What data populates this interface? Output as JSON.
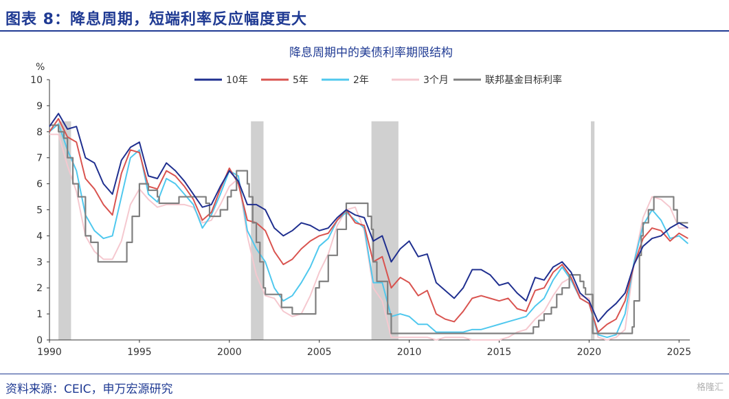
{
  "figure_title": "图表 8：降息周期，短端利率反应幅度更大",
  "source_note": "资料来源：CEIC，申万宏源研究",
  "watermark": "格隆汇",
  "chart_data": {
    "type": "line",
    "title": "降息周期中的美债利率期限结构",
    "ylabel": "%",
    "xlabel": "",
    "xlim": [
      1990,
      2025.6
    ],
    "ylim": [
      0,
      10
    ],
    "x_ticks": [
      1990,
      1995,
      2000,
      2005,
      2010,
      2015,
      2020,
      2025
    ],
    "y_ticks": [
      0,
      1,
      2,
      3,
      4,
      5,
      6,
      7,
      8,
      9,
      10
    ],
    "grid": false,
    "legend_position": "top",
    "recession_shading": [
      [
        1990.5,
        1991.2
      ],
      [
        2001.2,
        2001.9
      ],
      [
        2007.9,
        2009.4
      ],
      [
        2020.1,
        2020.3
      ]
    ],
    "series": [
      {
        "name": "10年",
        "color": "#1f2f8f",
        "x": [
          1990,
          1990.5,
          1991,
          1991.5,
          1992,
          1992.5,
          1993,
          1993.5,
          1994,
          1994.5,
          1995,
          1995.5,
          1996,
          1996.5,
          1997,
          1997.5,
          1998,
          1998.5,
          1999,
          1999.5,
          2000,
          2000.5,
          2001,
          2001.5,
          2002,
          2002.5,
          2003,
          2003.5,
          2004,
          2004.5,
          2005,
          2005.5,
          2006,
          2006.5,
          2007,
          2007.5,
          2008,
          2008.5,
          2009,
          2009.5,
          2010,
          2010.5,
          2011,
          2011.5,
          2012,
          2012.5,
          2013,
          2013.5,
          2014,
          2014.5,
          2015,
          2015.5,
          2016,
          2016.5,
          2017,
          2017.5,
          2018,
          2018.5,
          2019,
          2019.5,
          2020,
          2020.5,
          2021,
          2021.5,
          2022,
          2022.5,
          2023,
          2023.5,
          2024,
          2024.5,
          2025,
          2025.5
        ],
        "values": [
          8.2,
          8.7,
          8.1,
          8.2,
          7.0,
          6.8,
          6.0,
          5.6,
          6.9,
          7.4,
          7.6,
          6.3,
          6.2,
          6.8,
          6.5,
          6.1,
          5.6,
          5.1,
          5.2,
          5.9,
          6.5,
          6.1,
          5.2,
          5.2,
          5.0,
          4.3,
          4.0,
          4.2,
          4.5,
          4.4,
          4.2,
          4.3,
          4.7,
          5.0,
          4.8,
          4.7,
          3.8,
          4.0,
          3.0,
          3.5,
          3.8,
          3.2,
          3.3,
          2.2,
          1.9,
          1.6,
          2.0,
          2.7,
          2.7,
          2.5,
          2.1,
          2.2,
          1.8,
          1.5,
          2.4,
          2.3,
          2.8,
          3.0,
          2.6,
          1.8,
          1.5,
          0.7,
          1.1,
          1.4,
          1.8,
          2.9,
          3.6,
          3.9,
          4.0,
          4.3,
          4.5,
          4.3
        ]
      },
      {
        "name": "5年",
        "color": "#d9534f",
        "x": [
          1990,
          1990.5,
          1991,
          1991.5,
          1992,
          1992.5,
          1993,
          1993.5,
          1994,
          1994.5,
          1995,
          1995.5,
          1996,
          1996.5,
          1997,
          1997.5,
          1998,
          1998.5,
          1999,
          1999.5,
          2000,
          2000.5,
          2001,
          2001.5,
          2002,
          2002.5,
          2003,
          2003.5,
          2004,
          2004.5,
          2005,
          2005.5,
          2006,
          2006.5,
          2007,
          2007.5,
          2008,
          2008.5,
          2009,
          2009.5,
          2010,
          2010.5,
          2011,
          2011.5,
          2012,
          2012.5,
          2013,
          2013.5,
          2014,
          2014.5,
          2015,
          2015.5,
          2016,
          2016.5,
          2017,
          2017.5,
          2018,
          2018.5,
          2019,
          2019.5,
          2020,
          2020.5,
          2021,
          2021.5,
          2022,
          2022.5,
          2023,
          2023.5,
          2024,
          2024.5,
          2025,
          2025.5
        ],
        "values": [
          8.0,
          8.5,
          7.8,
          7.6,
          6.2,
          5.8,
          5.2,
          4.8,
          6.4,
          7.3,
          7.2,
          5.9,
          5.8,
          6.5,
          6.3,
          5.9,
          5.4,
          4.6,
          4.9,
          5.8,
          6.6,
          6.0,
          4.6,
          4.5,
          4.2,
          3.4,
          2.9,
          3.1,
          3.5,
          3.8,
          4.0,
          4.1,
          4.6,
          5.0,
          4.5,
          4.4,
          3.0,
          3.2,
          2.0,
          2.4,
          2.2,
          1.7,
          1.9,
          1.0,
          0.8,
          0.7,
          1.1,
          1.6,
          1.7,
          1.6,
          1.5,
          1.6,
          1.2,
          1.1,
          1.9,
          2.0,
          2.6,
          2.9,
          2.4,
          1.6,
          1.4,
          0.3,
          0.6,
          0.8,
          1.5,
          2.9,
          3.9,
          4.3,
          4.2,
          3.8,
          4.1,
          3.9
        ]
      },
      {
        "name": "2年",
        "color": "#4fc8ee",
        "x": [
          1990,
          1990.5,
          1991,
          1991.5,
          1992,
          1992.5,
          1993,
          1993.5,
          1994,
          1994.5,
          1995,
          1995.5,
          1996,
          1996.5,
          1997,
          1997.5,
          1998,
          1998.5,
          1999,
          1999.5,
          2000,
          2000.5,
          2001,
          2001.5,
          2002,
          2002.5,
          2003,
          2003.5,
          2004,
          2004.5,
          2005,
          2005.5,
          2006,
          2006.5,
          2007,
          2007.5,
          2008,
          2008.5,
          2009,
          2009.5,
          2010,
          2010.5,
          2011,
          2011.5,
          2012,
          2012.5,
          2013,
          2013.5,
          2014,
          2014.5,
          2015,
          2015.5,
          2016,
          2016.5,
          2017,
          2017.5,
          2018,
          2018.5,
          2019,
          2019.5,
          2020,
          2020.5,
          2021,
          2021.5,
          2022,
          2022.5,
          2023,
          2023.5,
          2024,
          2024.5,
          2025,
          2025.5
        ],
        "values": [
          8.0,
          8.3,
          7.3,
          6.5,
          4.8,
          4.2,
          3.9,
          4.0,
          5.5,
          7.0,
          7.3,
          5.6,
          5.3,
          6.2,
          6.0,
          5.6,
          5.2,
          4.3,
          4.8,
          5.6,
          6.5,
          6.3,
          4.2,
          3.5,
          3.0,
          2.0,
          1.5,
          1.7,
          2.2,
          2.8,
          3.6,
          3.9,
          4.6,
          4.9,
          4.6,
          4.3,
          2.2,
          2.2,
          0.9,
          1.0,
          0.9,
          0.6,
          0.6,
          0.3,
          0.3,
          0.3,
          0.3,
          0.4,
          0.4,
          0.5,
          0.6,
          0.7,
          0.8,
          0.9,
          1.3,
          1.6,
          2.3,
          2.8,
          2.3,
          1.6,
          1.4,
          0.2,
          0.1,
          0.2,
          1.0,
          3.0,
          4.4,
          5.0,
          4.6,
          3.9,
          4.0,
          3.7
        ]
      },
      {
        "name": "3个月",
        "color": "#f5c8cf",
        "x": [
          1990,
          1990.5,
          1991,
          1991.5,
          1992,
          1992.5,
          1993,
          1993.5,
          1994,
          1994.5,
          1995,
          1995.5,
          1996,
          1996.5,
          1997,
          1997.5,
          1998,
          1998.5,
          1999,
          1999.5,
          2000,
          2000.5,
          2001,
          2001.5,
          2002,
          2002.5,
          2003,
          2003.5,
          2004,
          2004.5,
          2005,
          2005.5,
          2006,
          2006.5,
          2007,
          2007.5,
          2008,
          2008.5,
          2009,
          2009.5,
          2010,
          2010.5,
          2011,
          2011.5,
          2012,
          2012.5,
          2013,
          2013.5,
          2014,
          2014.5,
          2015,
          2015.5,
          2016,
          2016.5,
          2017,
          2017.5,
          2018,
          2018.5,
          2019,
          2019.5,
          2020,
          2020.5,
          2021,
          2021.5,
          2022,
          2022.5,
          2023,
          2023.5,
          2024,
          2024.5,
          2025,
          2025.5
        ],
        "values": [
          7.9,
          7.9,
          6.7,
          5.7,
          4.0,
          3.4,
          3.1,
          3.1,
          3.8,
          5.2,
          5.8,
          5.4,
          5.1,
          5.2,
          5.2,
          5.2,
          5.1,
          4.5,
          4.6,
          5.2,
          5.9,
          6.2,
          4.0,
          2.5,
          1.7,
          1.6,
          1.1,
          0.9,
          1.0,
          1.7,
          2.6,
          3.3,
          4.4,
          5.0,
          5.1,
          4.2,
          2.0,
          1.5,
          0.1,
          0.1,
          0.1,
          0.1,
          0.1,
          0.0,
          0.1,
          0.1,
          0.1,
          0.0,
          0.0,
          0.0,
          0.0,
          0.1,
          0.3,
          0.4,
          0.8,
          1.1,
          1.7,
          2.2,
          2.4,
          1.7,
          1.6,
          0.1,
          0.0,
          0.1,
          0.4,
          3.0,
          4.7,
          5.5,
          5.4,
          5.1,
          4.3,
          4.3
        ]
      },
      {
        "name": "联邦基金目标利率",
        "color": "#7f7f7f",
        "x": [
          1990,
          1990.5,
          1990.8,
          1991,
          1991.3,
          1991.6,
          1992,
          1992.3,
          1992.7,
          1993,
          1994,
          1994.3,
          1994.6,
          1995,
          1995.5,
          1996,
          1996.1,
          1997,
          1997.2,
          1998,
          1998.7,
          1998.9,
          1999,
          1999.5,
          1999.9,
          2000.1,
          2000.4,
          2001,
          2001.1,
          2001.3,
          2001.5,
          2001.7,
          2001.9,
          2002,
          2002.9,
          2003.5,
          2004.5,
          2004.8,
          2005,
          2005.5,
          2006,
          2006.5,
          2007,
          2007.7,
          2007.9,
          2008,
          2008.2,
          2008.8,
          2009,
          2015.9,
          2016.9,
          2017.2,
          2017.5,
          2017.9,
          2018.2,
          2018.5,
          2018.9,
          2019.5,
          2019.7,
          2019.8,
          2020.2,
          2022.2,
          2022.4,
          2022.5,
          2022.8,
          2022.9,
          2023,
          2023.3,
          2023.6,
          2024,
          2024.7,
          2024.9,
          2025.5
        ],
        "values": [
          8.25,
          8.0,
          7.75,
          7.0,
          6.0,
          5.5,
          4.0,
          3.75,
          3.0,
          3.0,
          3.0,
          3.75,
          4.75,
          6.0,
          5.75,
          5.5,
          5.25,
          5.25,
          5.5,
          5.5,
          5.25,
          4.75,
          4.75,
          5.0,
          5.5,
          5.75,
          6.5,
          6.0,
          5.5,
          4.5,
          3.75,
          3.0,
          2.0,
          1.75,
          1.25,
          1.0,
          1.0,
          2.0,
          2.25,
          3.25,
          4.25,
          5.25,
          5.25,
          4.75,
          4.25,
          3.0,
          2.25,
          1.0,
          0.25,
          0.25,
          0.5,
          0.75,
          1.0,
          1.25,
          1.75,
          2.0,
          2.5,
          2.25,
          2.0,
          1.75,
          0.25,
          0.25,
          0.5,
          1.5,
          3.25,
          4.0,
          4.5,
          5.0,
          5.5,
          5.5,
          5.0,
          4.5,
          4.5
        ]
      }
    ]
  }
}
